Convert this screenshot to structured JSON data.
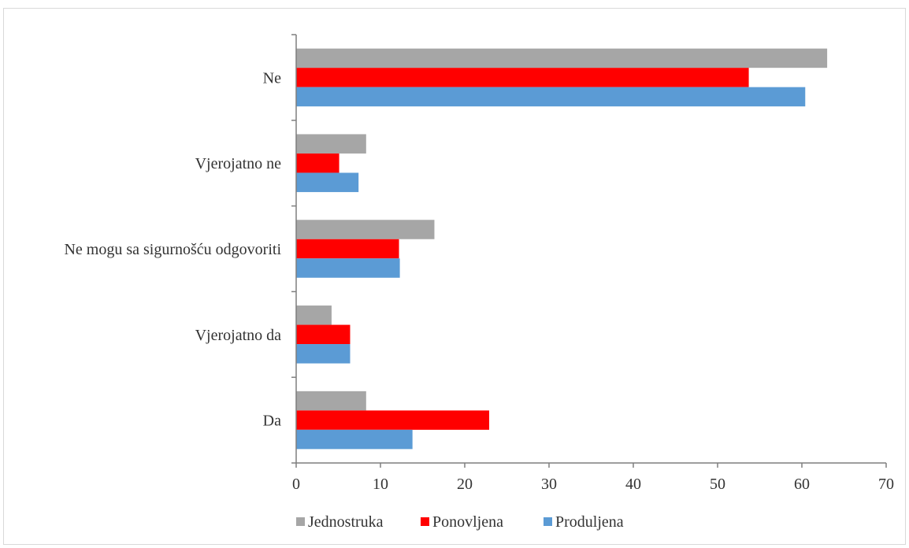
{
  "chart_data": {
    "type": "bar",
    "orientation": "horizontal",
    "categories": [
      "Da",
      "Vjerojatno da",
      "Ne mogu sa sigurnošću odgovoriti",
      "Vjerojatno ne",
      "Ne"
    ],
    "series": [
      {
        "name": "Jednostruka",
        "color": "#a6a6a6",
        "values": [
          8.3,
          4.2,
          16.4,
          8.3,
          63.0
        ]
      },
      {
        "name": "Ponovljena",
        "color": "#ff0000",
        "values": [
          22.9,
          6.4,
          12.2,
          5.1,
          53.7
        ]
      },
      {
        "name": "Produljena",
        "color": "#5b9bd5",
        "values": [
          13.8,
          6.4,
          12.3,
          7.4,
          60.4
        ]
      }
    ],
    "xlim": [
      0,
      70
    ],
    "xticks": [
      0,
      10,
      20,
      30,
      40,
      50,
      60,
      70
    ],
    "title": "",
    "xlabel": "",
    "ylabel": "",
    "grid": false,
    "legend_position": "bottom"
  }
}
